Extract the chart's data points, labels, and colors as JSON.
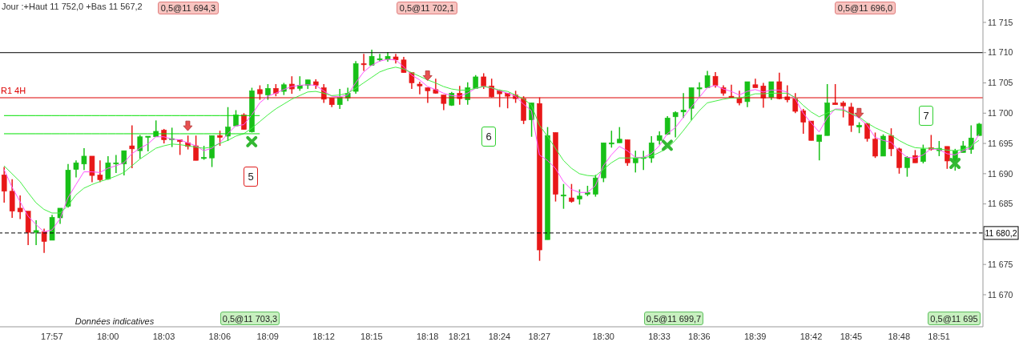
{
  "chart_data": {
    "type": "candlestick",
    "title": "Jour :+Haut 11 752,0 +Bas 11 567,2",
    "categories": [
      null,
      null,
      null,
      null,
      null,
      null,
      "17:57",
      null,
      null,
      null,
      null,
      null,
      null,
      "18:00",
      null,
      null,
      null,
      null,
      null,
      null,
      "18:03",
      null,
      null,
      null,
      null,
      null,
      null,
      "18:06",
      null,
      null,
      null,
      null,
      null,
      "18:09",
      null,
      null,
      null,
      null,
      null,
      null,
      "18:12",
      null,
      null,
      null,
      null,
      null,
      "18:15",
      null,
      null,
      null,
      null,
      null,
      null,
      "18:18",
      null,
      null,
      null,
      "18:21",
      null,
      null,
      null,
      null,
      "18:24",
      null,
      null,
      null,
      null,
      "18:27",
      null,
      null,
      null,
      null,
      null,
      null,
      null,
      "18:30",
      null,
      null,
      null,
      null,
      null,
      null,
      "18:33",
      null,
      null,
      null,
      null,
      "18:36",
      null,
      null,
      null,
      null,
      null,
      null,
      "18:39",
      null,
      null,
      null,
      null,
      null,
      null,
      "18:42",
      null,
      null,
      null,
      null,
      "18:45",
      null,
      null,
      null,
      null,
      null,
      "18:48",
      null,
      null,
      null,
      null,
      "18:51",
      null,
      null,
      null,
      null,
      null
    ],
    "series": [
      {
        "ohlc": [
          [
            11689.8,
            11691.1,
            11685.2,
            11687.1
          ],
          [
            11687.1,
            11689.1,
            11682.7,
            11683.8
          ],
          [
            11684.3,
            11686.4,
            11682.5,
            11683.7
          ],
          [
            11683.8,
            11683.8,
            11678.2,
            11680.3
          ],
          [
            11680.3,
            11682.3,
            11678.2,
            11680.6
          ],
          [
            11680.4,
            11680.9,
            11676.9,
            11678.8
          ],
          [
            11679.0,
            11683.2,
            11679.0,
            11682.8
          ],
          [
            11682.7,
            11684.3,
            11681.7,
            11684.3
          ],
          [
            11684.6,
            11691.6,
            11684.4,
            11690.6
          ],
          [
            11690.7,
            11692.2,
            11689.4,
            11691.8
          ],
          [
            11691.6,
            11694.2,
            11690.6,
            11692.9
          ],
          [
            11692.9,
            11692.9,
            11688.6,
            11689.7
          ],
          [
            11689.8,
            11692.2,
            11688.6,
            11689.0
          ],
          [
            11689.1,
            11692.9,
            11689.0,
            11691.8
          ],
          [
            11691.6,
            11693.1,
            11690.1,
            11691.8
          ],
          [
            11691.6,
            11693.8,
            11689.7,
            11693.8
          ],
          [
            11694.6,
            11698.0,
            11690.9,
            11694.1
          ],
          [
            11693.8,
            11696.4,
            11692.5,
            11696.1
          ],
          [
            11696.0,
            11696.2,
            11693.7,
            11696.2
          ],
          [
            11696.1,
            11698.8,
            11696.1,
            11697.0
          ],
          [
            11697.2,
            11697.4,
            11695.0,
            11695.6
          ],
          [
            11695.6,
            11697.6,
            11694.4,
            11695.8
          ],
          [
            11695.6,
            11695.6,
            11693.1,
            11695.3
          ],
          [
            11695.1,
            11696.3,
            11694.0,
            11694.5
          ],
          [
            11694.6,
            11696.3,
            11692.2,
            11692.2
          ],
          [
            11692.6,
            11694.6,
            11692.3,
            11692.7
          ],
          [
            11692.6,
            11696.3,
            11691.1,
            11696.3
          ],
          [
            11696.3,
            11697.1,
            11694.6,
            11696.0
          ],
          [
            11696.2,
            11701.0,
            11695.4,
            11697.7
          ],
          [
            11697.9,
            11700.5,
            11697.9,
            11699.7
          ],
          [
            11699.7,
            11700.0,
            11697.3,
            11697.3
          ],
          [
            11696.9,
            11704.2,
            11696.8,
            11703.7
          ],
          [
            11703.9,
            11704.6,
            11702.2,
            11703.2
          ],
          [
            11703.0,
            11704.8,
            11702.2,
            11704.1
          ],
          [
            11704.1,
            11704.8,
            11702.8,
            11703.3
          ],
          [
            11703.6,
            11705.0,
            11703.0,
            11704.7
          ],
          [
            11704.8,
            11706.1,
            11703.2,
            11704.0
          ],
          [
            11704.1,
            11706.1,
            11703.7,
            11704.6
          ],
          [
            11704.6,
            11705.5,
            11704.0,
            11705.5
          ],
          [
            11705.2,
            11705.6,
            11704.0,
            11704.6
          ],
          [
            11704.2,
            11704.8,
            11701.7,
            11702.3
          ],
          [
            11702.5,
            11702.5,
            11701.0,
            11701.4
          ],
          [
            11701.4,
            11704.0,
            11700.7,
            11702.6
          ],
          [
            11702.5,
            11704.2,
            11702.0,
            11703.3
          ],
          [
            11703.6,
            11708.6,
            11703.2,
            11708.2
          ],
          [
            11708.2,
            11709.8,
            11707.0,
            11708.0
          ],
          [
            11707.9,
            11710.5,
            11707.9,
            11709.4
          ],
          [
            11708.9,
            11709.8,
            11708.5,
            11709.0
          ],
          [
            11708.9,
            11710.1,
            11708.5,
            11709.4
          ],
          [
            11709.3,
            11709.8,
            11708.2,
            11708.8
          ],
          [
            11708.8,
            11709.3,
            11706.7,
            11706.7
          ],
          [
            11706.7,
            11706.7,
            11704.0,
            11705.0
          ],
          [
            11704.8,
            11705.2,
            11703.1,
            11704.5
          ],
          [
            11704.2,
            11704.2,
            11701.7,
            11703.7
          ],
          [
            11703.9,
            11705.7,
            11703.2,
            11703.3
          ],
          [
            11703.0,
            11703.0,
            11700.5,
            11701.6
          ],
          [
            11701.3,
            11703.5,
            11701.2,
            11703.3
          ],
          [
            11703.3,
            11704.5,
            11701.4,
            11702.4
          ],
          [
            11702.2,
            11705.1,
            11701.4,
            11704.2
          ],
          [
            11704.1,
            11706.3,
            11704.1,
            11706.0
          ],
          [
            11706.0,
            11706.6,
            11704.0,
            11704.5
          ],
          [
            11704.5,
            11705.7,
            11702.6,
            11702.7
          ],
          [
            11703.7,
            11703.9,
            11701.0,
            11703.2
          ],
          [
            11703.3,
            11703.3,
            11700.8,
            11702.8
          ],
          [
            11703.0,
            11703.7,
            11701.7,
            11702.4
          ],
          [
            11702.4,
            11702.8,
            11698.2,
            11698.8
          ],
          [
            11698.9,
            11701.7,
            11696.1,
            11701.7
          ],
          [
            11701.6,
            11702.6,
            11675.6,
            11677.4
          ],
          [
            11679.1,
            11697.7,
            11679.1,
            11696.3
          ],
          [
            11696.8,
            11696.8,
            11685.4,
            11686.6
          ],
          [
            11686.3,
            11688.3,
            11684.2,
            11686.5
          ],
          [
            11686.0,
            11688.3,
            11685.2,
            11685.4
          ],
          [
            11685.8,
            11687.4,
            11684.9,
            11686.3
          ],
          [
            11686.6,
            11688.0,
            11686.3,
            11686.9
          ],
          [
            11686.6,
            11689.8,
            11686.2,
            11689.3
          ],
          [
            11689.3,
            11695.1,
            11688.6,
            11695.1
          ],
          [
            11695.0,
            11697.1,
            11694.3,
            11695.1
          ],
          [
            11695.1,
            11697.7,
            11695.1,
            11695.7
          ],
          [
            11695.6,
            11695.6,
            11691.3,
            11691.8
          ],
          [
            11691.8,
            11693.8,
            11690.2,
            11692.6
          ],
          [
            11692.6,
            11693.8,
            11690.6,
            11692.7
          ],
          [
            11692.6,
            11696.2,
            11691.8,
            11695.1
          ],
          [
            11695.5,
            11697.0,
            11694.8,
            11696.3
          ],
          [
            11696.5,
            11699.5,
            11696.4,
            11699.2
          ],
          [
            11699.4,
            11700.3,
            11696.0,
            11700.1
          ],
          [
            11700.2,
            11703.3,
            11699.2,
            11700.5
          ],
          [
            11700.8,
            11704.2,
            11698.8,
            11704.2
          ],
          [
            11704.1,
            11705.1,
            11702.6,
            11704.2
          ],
          [
            11704.2,
            11707.0,
            11704.2,
            11706.2
          ],
          [
            11706.1,
            11706.8,
            11704.2,
            11704.6
          ],
          [
            11704.2,
            11704.6,
            11702.9,
            11703.3
          ],
          [
            11702.8,
            11704.7,
            11702.5,
            11702.5
          ],
          [
            11702.5,
            11703.7,
            11701.3,
            11701.7
          ],
          [
            11701.9,
            11705.2,
            11701.0,
            11705.2
          ],
          [
            11704.7,
            11705.7,
            11704.2,
            11704.2
          ],
          [
            11704.5,
            11705.0,
            11700.9,
            11702.5
          ],
          [
            11702.6,
            11705.2,
            11702.2,
            11705.2
          ],
          [
            11705.2,
            11706.7,
            11702.3,
            11702.4
          ],
          [
            11702.7,
            11704.6,
            11701.8,
            11702.2
          ],
          [
            11702.4,
            11703.3,
            11700.0,
            11700.3
          ],
          [
            11700.4,
            11700.7,
            11696.6,
            11698.5
          ],
          [
            11698.7,
            11698.7,
            11695.5,
            11695.5
          ],
          [
            11695.3,
            11696.4,
            11692.2,
            11696.4
          ],
          [
            11696.3,
            11704.8,
            11696.3,
            11701.7
          ],
          [
            11701.7,
            11704.8,
            11701.4,
            11701.4
          ],
          [
            11701.7,
            11702.0,
            11699.3,
            11701.2
          ],
          [
            11701.0,
            11701.7,
            11696.9,
            11698.0
          ],
          [
            11697.7,
            11698.5,
            11696.7,
            11698.0
          ],
          [
            11698.3,
            11698.3,
            11695.3,
            11695.8
          ],
          [
            11695.7,
            11696.8,
            11692.6,
            11692.9
          ],
          [
            11692.9,
            11696.5,
            11692.9,
            11696.2
          ],
          [
            11696.3,
            11697.5,
            11692.9,
            11694.1
          ],
          [
            11694.1,
            11694.3,
            11690.0,
            11691.0
          ],
          [
            11691.0,
            11692.9,
            11689.5,
            11692.7
          ],
          [
            11693.0,
            11693.9,
            11691.8,
            11691.8
          ],
          [
            11692.0,
            11694.8,
            11691.7,
            11694.1
          ],
          [
            11694.3,
            11696.4,
            11693.8,
            11694.0
          ],
          [
            11693.8,
            11695.4,
            11692.9,
            11694.2
          ],
          [
            11694.5,
            11694.5,
            11690.8,
            11692.1
          ],
          [
            11692.0,
            11694.1,
            11690.5,
            11693.8
          ],
          [
            11693.5,
            11695.4,
            11693.5,
            11694.6
          ],
          [
            11694.0,
            11698.0,
            11693.3,
            11695.9
          ],
          [
            11696.3,
            11698.4,
            11696.3,
            11698.2
          ]
        ],
        "colors": [
          "#e81818",
          "#e81818",
          "#e81818",
          "#e81818",
          "#18c018",
          "#e81818",
          "#18c018",
          "#18c018",
          "#18c018",
          "#18c018",
          "#18c018",
          "#e81818",
          "#e81818",
          "#18c018",
          "#18c018",
          "#18c018",
          "#e81818",
          "#18c018",
          "#18c018",
          "#18c018",
          "#e81818",
          "#18c018",
          "#e81818",
          "#e81818",
          "#e81818",
          "#18c018",
          "#18c018",
          "#e81818",
          "#18c018",
          "#18c018",
          "#e81818",
          "#18c018",
          "#e81818",
          "#18c018",
          "#e81818",
          "#18c018",
          "#e81818",
          "#18c018",
          "#18c018",
          "#e81818",
          "#e81818",
          "#e81818",
          "#18c018",
          "#18c018",
          "#18c018",
          "#e81818",
          "#18c018",
          "#18c018",
          "#18c018",
          "#e81818",
          "#e81818",
          "#e81818",
          "#e81818",
          "#e81818",
          "#e81818",
          "#e81818",
          "#18c018",
          "#e81818",
          "#18c018",
          "#18c018",
          "#e81818",
          "#e81818",
          "#e81818",
          "#e81818",
          "#e81818",
          "#e81818",
          "#18c018",
          "#e81818",
          "#18c018",
          "#e81818",
          "#18c018",
          "#e81818",
          "#18c018",
          "#18c018",
          "#18c018",
          "#18c018",
          "#18c018",
          "#18c018",
          "#e81818",
          "#18c018",
          "#18c018",
          "#18c018",
          "#18c018",
          "#18c018",
          "#18c018",
          "#18c018",
          "#18c018",
          "#18c018",
          "#18c018",
          "#e81818",
          "#e81818",
          "#e81818",
          "#e81818",
          "#18c018",
          "#e81818",
          "#e81818",
          "#18c018",
          "#e81818",
          "#e81818",
          "#e81818",
          "#e81818",
          "#e81818",
          "#18c018",
          "#18c018",
          "#e81818",
          "#e81818",
          "#e81818",
          "#18c018",
          "#e81818",
          "#e81818",
          "#18c018",
          "#e81818",
          "#e81818",
          "#18c018",
          "#e81818",
          "#18c018",
          "#e81818",
          "#18c018",
          "#e81818",
          "#18c018",
          "#18c018",
          "#18c018",
          "#18c018"
        ]
      },
      {
        "type": "line",
        "color": "#ff55ff",
        "values": [
          11690.7,
          11687.8,
          11685.4,
          11683.0,
          11681.6,
          11680.4,
          11680.7,
          11682.5,
          11686.0,
          11688.2,
          11690.3,
          11690.3,
          11690.2,
          11690.9,
          11691.3,
          11691.8,
          11693.3,
          11694.2,
          11694.9,
          11696.1,
          11696.1,
          11695.7,
          11695.6,
          11695.1,
          11694.6,
          11693.8,
          11694.2,
          11695.1,
          11696.6,
          11697.9,
          11698.1,
          11699.7,
          11701.7,
          11702.8,
          11703.3,
          11703.9,
          11704.4,
          11704.6,
          11704.7,
          11704.6,
          11703.7,
          11702.8,
          11702.7,
          11703.0,
          11705.0,
          11706.8,
          11707.9,
          11708.6,
          11708.9,
          11708.8,
          11707.7,
          11706.3,
          11705.5,
          11704.4,
          11703.9,
          11703.3,
          11702.9,
          11702.8,
          11703.3,
          11704.1,
          11704.4,
          11704.2,
          11703.7,
          11703.3,
          11702.8,
          11701.5,
          11700.4,
          11693.1,
          11692.2,
          11690.9,
          11688.7,
          11687.4,
          11686.9,
          11686.9,
          11688.0,
          11691.3,
          11693.1,
          11694.5,
          11693.8,
          11692.7,
          11692.7,
          11693.3,
          11694.6,
          11696.6,
          11697.6,
          11699.3,
          11701.0,
          11702.6,
          11704.2,
          11704.6,
          11704.0,
          11703.6,
          11703.0,
          11703.6,
          11703.9,
          11703.5,
          11703.8,
          11703.8,
          11703.5,
          11702.4,
          11700.0,
          11698.4,
          11696.9,
          11699.2,
          11700.7,
          11700.7,
          11699.9,
          11699.2,
          11698.0,
          11696.0,
          11695.5,
          11695.2,
          11693.8,
          11692.7,
          11692.6,
          11693.1,
          11694.1,
          11694.0,
          11693.3,
          11693.1,
          11693.8,
          11694.3,
          11696.5
        ]
      },
      {
        "type": "line",
        "color": "#44ee44",
        "values": [
          11691.3,
          11690.0,
          11688.7,
          11686.9,
          11685.2,
          11684.1,
          11683.5,
          11683.5,
          11684.7,
          11686.5,
          11687.6,
          11688.2,
          11688.7,
          11689.1,
          11689.6,
          11690.2,
          11691.3,
          11692.4,
          11693.3,
          11694.2,
          11694.6,
          11694.9,
          11694.8,
          11694.6,
          11694.4,
          11694.2,
          11694.4,
          11695.0,
          11695.5,
          11696.2,
          11696.6,
          11697.5,
          11698.6,
          11699.7,
          11700.7,
          11701.5,
          11702.3,
          11702.9,
          11703.5,
          11703.6,
          11703.3,
          11702.9,
          11703.0,
          11703.3,
          11704.1,
          11705.0,
          11705.9,
          11706.8,
          11707.3,
          11707.6,
          11707.3,
          11706.7,
          11706.1,
          11705.5,
          11705.0,
          11704.4,
          11704.0,
          11703.8,
          11703.8,
          11704.1,
          11704.4,
          11704.2,
          11703.8,
          11703.6,
          11703.0,
          11702.4,
          11701.3,
          11698.0,
          11696.2,
          11694.2,
          11692.2,
          11690.9,
          11690.0,
          11689.7,
          11689.6,
          11690.7,
          11691.8,
          11692.6,
          11692.6,
          11692.6,
          11692.6,
          11692.9,
          11693.5,
          11694.2,
          11695.5,
          11697.1,
          11698.8,
          11700.4,
          11701.7,
          11702.0,
          11702.3,
          11702.5,
          11702.5,
          11702.8,
          11703.2,
          11703.2,
          11703.3,
          11703.3,
          11703.3,
          11702.6,
          11701.3,
          11700.2,
          11699.4,
          11700.0,
          11700.6,
          11700.5,
          11699.9,
          11699.4,
          11698.4,
          11697.6,
          11697.0,
          11696.4,
          11695.5,
          11694.8,
          11694.3,
          11694.2,
          11694.2,
          11694.1,
          11693.9,
          11693.8,
          11694.0,
          11694.6,
          11695.5
        ]
      },
      {
        "type": "line",
        "color": "#00e000",
        "values": [
          11699.6,
          11699.6,
          11699.6,
          11699.6,
          11699.6,
          11699.6,
          11699.6,
          11699.6,
          11699.6,
          11699.6,
          11699.6,
          11699.6,
          11699.6,
          11699.6,
          11699.6,
          11699.6,
          11699.6,
          11699.6,
          11699.6,
          11699.6,
          11699.6,
          11699.6,
          11699.6,
          11699.6,
          11699.6,
          11699.6,
          11699.6,
          11699.6,
          11699.6,
          11699.6,
          11699.6,
          11699.6,
          11699.6,
          null,
          null,
          null,
          null,
          null,
          null,
          null,
          null,
          null,
          null,
          null,
          null,
          null,
          null,
          null,
          null,
          null,
          null,
          null,
          null,
          null,
          null,
          null,
          null,
          null,
          null,
          null,
          null,
          null,
          null,
          null,
          null,
          null,
          null,
          null,
          null,
          null,
          null,
          null,
          null,
          null,
          null,
          null,
          null,
          null,
          null,
          null,
          null,
          null,
          null,
          null,
          null,
          null,
          null,
          null,
          null,
          null,
          null,
          null,
          null,
          null,
          null,
          null,
          null,
          null,
          null,
          null,
          null,
          null,
          null,
          null,
          null,
          null,
          null,
          null,
          null,
          null,
          null,
          null,
          null,
          null,
          null,
          null,
          null,
          null,
          null,
          null,
          null,
          null,
          null
        ]
      },
      {
        "type": "line",
        "color": "#00e000",
        "values": [
          11696.6,
          11696.6,
          11696.6,
          11696.6,
          11696.6,
          11696.6,
          11696.6,
          11696.6,
          11696.6,
          11696.6,
          11696.6,
          11696.6,
          11696.6,
          11696.6,
          11696.6,
          11696.6,
          11696.6,
          11696.6,
          11696.6,
          11696.6,
          11696.6,
          11696.6,
          11696.6,
          11696.6,
          11696.6,
          11696.6,
          11696.6,
          11696.6,
          11696.6,
          11696.6,
          11696.6,
          11696.6,
          11696.6,
          null,
          null,
          null,
          null,
          null,
          null,
          null,
          null,
          null,
          null,
          null,
          null,
          null,
          null,
          null,
          null,
          null,
          null,
          null,
          null,
          null,
          null,
          null,
          null,
          null,
          null,
          null,
          null,
          null,
          null,
          null,
          null,
          null,
          null,
          null,
          null,
          null,
          null,
          null,
          null,
          null,
          null,
          null,
          null,
          null,
          null,
          null,
          null,
          null,
          null,
          null,
          null,
          null,
          null,
          null,
          null,
          null,
          null,
          null,
          null,
          null,
          null,
          null,
          null,
          null,
          null,
          null,
          null,
          null,
          null,
          null,
          null,
          null,
          null,
          null,
          null,
          null,
          null,
          null,
          null,
          null,
          null,
          null,
          null,
          null,
          null,
          null,
          null,
          null,
          null
        ]
      },
      {
        "type": "scatter",
        "marker": "cross",
        "color": "#33b833",
        "values": [
          null,
          null,
          null,
          null,
          null,
          null,
          null,
          null,
          null,
          null,
          null,
          null,
          null,
          null,
          null,
          null,
          null,
          null,
          null,
          null,
          null,
          null,
          null,
          null,
          null,
          null,
          null,
          null,
          null,
          null,
          null,
          11695.3,
          null,
          null,
          null,
          null,
          null,
          null,
          null,
          null,
          null,
          null,
          null,
          null,
          null,
          null,
          null,
          null,
          null,
          null,
          null,
          null,
          null,
          null,
          null,
          null,
          null,
          null,
          null,
          null,
          null,
          null,
          null,
          null,
          null,
          null,
          null,
          null,
          null,
          null,
          null,
          null,
          null,
          null,
          null,
          null,
          null,
          null,
          null,
          null,
          null,
          null,
          null,
          11694.7,
          null,
          null,
          null,
          null,
          null,
          null,
          null,
          null,
          null,
          null,
          null,
          null,
          null,
          null,
          null,
          null,
          null,
          null,
          null,
          null,
          null,
          null,
          null,
          null,
          null,
          null,
          null,
          null,
          null,
          null,
          null,
          null,
          null,
          null,
          null,
          11691.7,
          null,
          null,
          null
        ]
      },
      {
        "type": "scatter",
        "marker": "triangle",
        "color": "#e85050",
        "values": [
          null,
          null,
          null,
          null,
          null,
          null,
          null,
          null,
          null,
          null,
          null,
          null,
          null,
          null,
          null,
          null,
          null,
          null,
          null,
          null,
          null,
          null,
          null,
          11697.9,
          null,
          null,
          null,
          null,
          null,
          null,
          null,
          null,
          null,
          null,
          null,
          null,
          null,
          null,
          null,
          null,
          null,
          null,
          null,
          null,
          null,
          null,
          null,
          null,
          null,
          null,
          null,
          null,
          null,
          11706.2,
          null,
          null,
          null,
          null,
          null,
          null,
          null,
          null,
          null,
          null,
          null,
          null,
          null,
          null,
          null,
          null,
          null,
          null,
          null,
          null,
          null,
          null,
          null,
          null,
          null,
          null,
          null,
          null,
          null,
          null,
          null,
          null,
          null,
          null,
          null,
          null,
          null,
          null,
          null,
          null,
          null,
          null,
          null,
          null,
          null,
          null,
          null,
          null,
          null,
          null,
          null,
          null,
          null,
          11700.0,
          null,
          null,
          null,
          null,
          null,
          null,
          null,
          null,
          null,
          null,
          null,
          null,
          null,
          null,
          null
        ]
      }
    ],
    "ylim": [
      11664.7,
      11718.7
    ],
    "yticks": [
      {
        "value": 11670,
        "label": "11 670"
      },
      {
        "value": 11675,
        "label": "11 675"
      },
      {
        "value": 11680,
        "label": null
      },
      {
        "value": 11685,
        "label": "11 685"
      },
      {
        "value": 11690,
        "label": "11 690"
      },
      {
        "value": 11695,
        "label": "11 695"
      },
      {
        "value": 11700,
        "label": "11 700"
      },
      {
        "value": 11705,
        "label": "11 705"
      },
      {
        "value": 11710,
        "label": "11 710"
      },
      {
        "value": 11715,
        "label": "11 715"
      }
    ],
    "ref_lines": [
      {
        "axis": "y",
        "value": 11710,
        "color": "#000000"
      },
      {
        "axis": "y",
        "value": 11702.55,
        "label": "R1 4H",
        "color": "#dd0000"
      },
      {
        "axis": "y",
        "value": 11680.2,
        "label": "11 680,2",
        "color": "#000000",
        "line_style": "dashed"
      }
    ],
    "annotations": [
      "0,5@11 694,3",
      "0,5@11 702,1",
      "0,5@11 696,0",
      "0,5@11 703,3",
      "0,5@11 699,7",
      "0,5@11 695",
      "5",
      "6",
      "7",
      "Données indicatives"
    ]
  }
}
